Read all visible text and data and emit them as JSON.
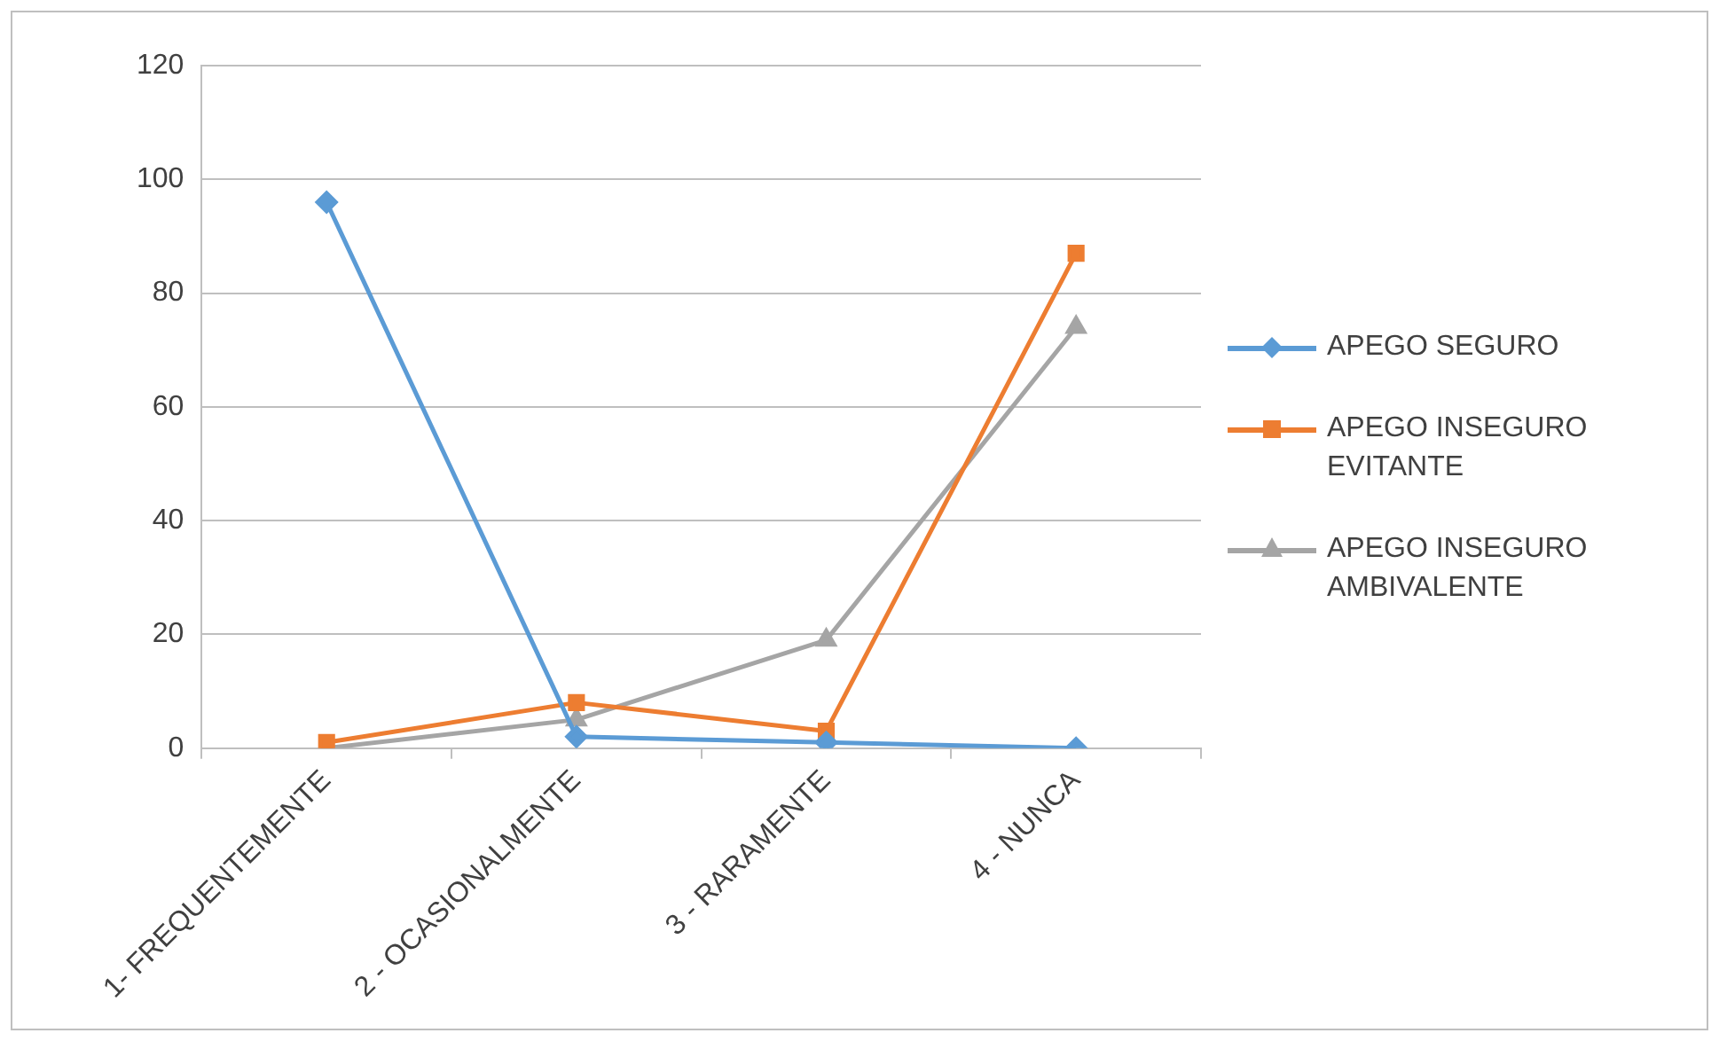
{
  "chart_data": {
    "type": "line",
    "categories": [
      "1- FREQUENTEMENTE",
      "2 - OCASIONALMENTE",
      "3 - RARAMENTE",
      "4 - NUNCA"
    ],
    "series": [
      {
        "name": "APEGO SEGURO",
        "color": "#5b9bd5",
        "values": [
          96,
          2,
          1,
          0
        ],
        "marker": "diamond"
      },
      {
        "name": "APEGO INSEGURO EVITANTE",
        "color": "#ed7d31",
        "values": [
          1,
          8,
          3,
          87
        ],
        "marker": "square"
      },
      {
        "name": "APEGO INSEGURO AMBIVALENTE",
        "color": "#a5a5a5",
        "values": [
          0,
          5,
          19,
          74
        ],
        "marker": "triangle"
      }
    ],
    "ylim": [
      0,
      120
    ],
    "yticks": [
      0,
      20,
      40,
      60,
      80,
      100,
      120
    ],
    "grid": "y",
    "legend": "right",
    "line_style": "solid"
  }
}
